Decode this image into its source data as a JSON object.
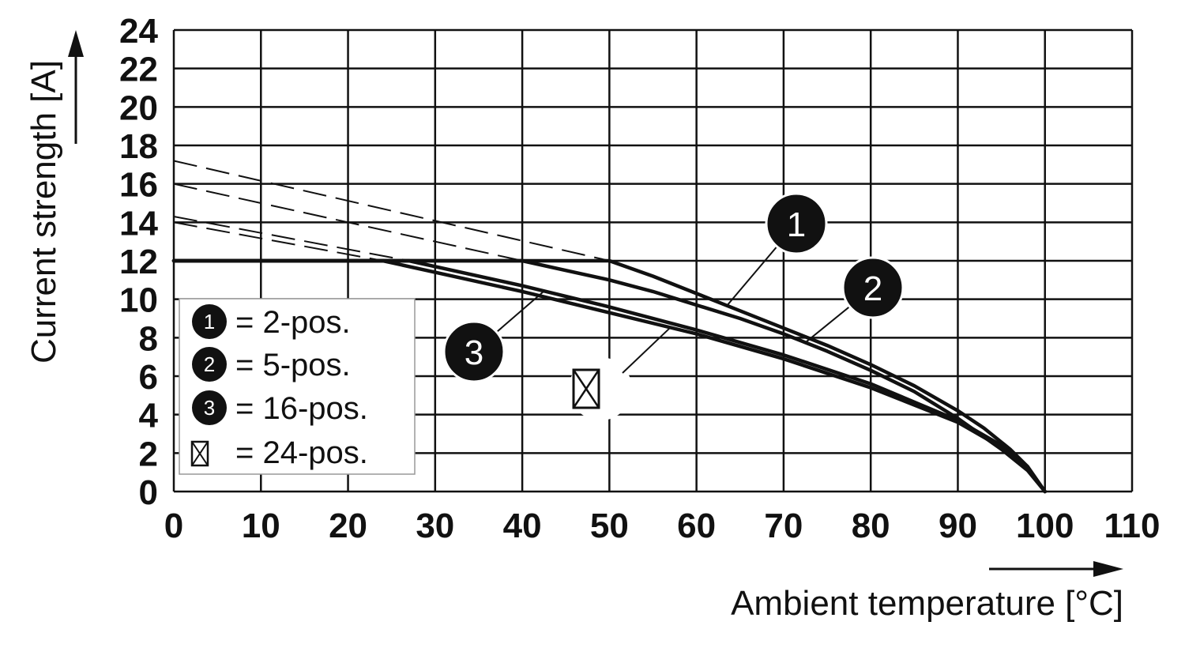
{
  "chart_data": {
    "type": "line",
    "xlabel": "Ambient temperature [°C]",
    "ylabel": "Current strength [A]",
    "xlim": [
      0,
      110
    ],
    "ylim": [
      0,
      24
    ],
    "xticks": [
      0,
      10,
      20,
      30,
      40,
      50,
      60,
      70,
      80,
      90,
      100,
      110
    ],
    "yticks": [
      0,
      2,
      4,
      6,
      8,
      10,
      12,
      14,
      16,
      18,
      20,
      22,
      24
    ],
    "grid": true,
    "legend_position": "bottom-left",
    "legend": [
      {
        "marker": "1",
        "text": "= 2-pos."
      },
      {
        "marker": "2",
        "text": "= 5-pos."
      },
      {
        "marker": "3",
        "text": "= 16-pos."
      },
      {
        "marker": "⊠",
        "text": "= 24-pos."
      }
    ],
    "series": [
      {
        "name": "1",
        "label": "1",
        "style": "solid",
        "x": [
          0,
          50,
          55,
          60,
          65,
          70,
          75,
          80,
          85,
          90,
          93,
          96,
          98,
          100
        ],
        "y": [
          12,
          12,
          11.2,
          10.3,
          9.4,
          8.5,
          7.6,
          6.6,
          5.5,
          4.2,
          3.3,
          2.2,
          1.3,
          0
        ]
      },
      {
        "name": "2",
        "label": "2",
        "style": "solid",
        "x": [
          0,
          40,
          45,
          50,
          55,
          60,
          65,
          70,
          75,
          80,
          85,
          90,
          95,
          98,
          100
        ],
        "y": [
          12,
          12,
          11.5,
          11.0,
          10.4,
          9.7,
          9.0,
          8.2,
          7.3,
          6.3,
          5.2,
          3.8,
          2.2,
          1.1,
          0
        ]
      },
      {
        "name": "3",
        "label": "3",
        "style": "solid",
        "x": [
          0,
          27,
          30,
          40,
          50,
          60,
          70,
          80,
          90,
          95,
          98,
          100
        ],
        "y": [
          12,
          12,
          11.7,
          10.7,
          9.6,
          8.4,
          7.1,
          5.6,
          3.7,
          2.4,
          1.3,
          0
        ]
      },
      {
        "name": "⊠",
        "label": "⊠",
        "style": "solid",
        "x": [
          0,
          24,
          30,
          40,
          50,
          60,
          70,
          80,
          90,
          95,
          98,
          100
        ],
        "y": [
          12,
          12,
          11.4,
          10.4,
          9.3,
          8.2,
          6.9,
          5.4,
          3.6,
          2.3,
          1.2,
          0
        ]
      },
      {
        "name": "",
        "label": "",
        "style": "dashed",
        "x": [
          0,
          50
        ],
        "y": [
          17.2,
          12
        ]
      },
      {
        "name": "",
        "label": "",
        "style": "dashed",
        "x": [
          0,
          40
        ],
        "y": [
          16.0,
          12
        ]
      },
      {
        "name": "",
        "label": "",
        "style": "dashed",
        "x": [
          0,
          27
        ],
        "y": [
          14.3,
          12
        ]
      },
      {
        "name": "",
        "label": "",
        "style": "dashed",
        "x": [
          0,
          24
        ],
        "y": [
          14.0,
          12
        ]
      }
    ]
  }
}
